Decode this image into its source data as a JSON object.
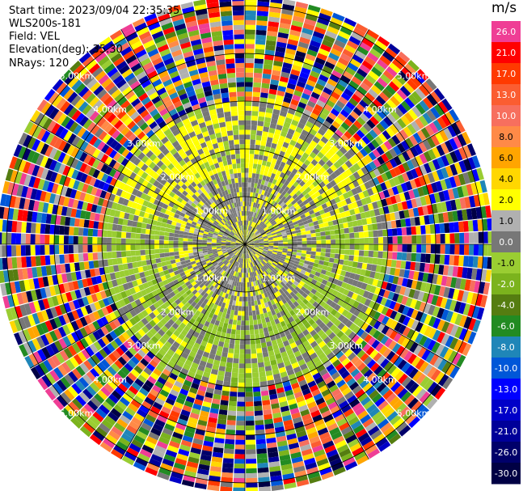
{
  "header": {
    "start_time": "Start time: 2023/09/04 22:35:35",
    "instrument": "WLS200s-181",
    "field": "Field: VEL",
    "elevation": "Elevation(deg): 35.30",
    "nrays": "NRays: 120"
  },
  "colorbar": {
    "unit": "m/s",
    "levels": [
      {
        "label": "26.0",
        "color": "#ef3e95"
      },
      {
        "label": "21.0",
        "color": "#ff0000"
      },
      {
        "label": "17.0",
        "color": "#ff3a00"
      },
      {
        "label": "13.0",
        "color": "#fb5d31"
      },
      {
        "label": "10.0",
        "color": "#f76f5e"
      },
      {
        "label": "8.0",
        "color": "#ff8a47"
      },
      {
        "label": "6.0",
        "color": "#ffa500"
      },
      {
        "label": "4.0",
        "color": "#ffd700"
      },
      {
        "label": "2.0",
        "color": "#ffff00"
      },
      {
        "label": "1.0",
        "color": "#b0b0b0"
      },
      {
        "label": "0.0",
        "color": "#777777"
      },
      {
        "label": "-1.0",
        "color": "#9acd32"
      },
      {
        "label": "-2.0",
        "color": "#7bb31d"
      },
      {
        "label": "-4.0",
        "color": "#557d11"
      },
      {
        "label": "-6.0",
        "color": "#228b22"
      },
      {
        "label": "-8.0",
        "color": "#1f86b8"
      },
      {
        "label": "-10.0",
        "color": "#0057d8"
      },
      {
        "label": "-13.0",
        "color": "#0000ff"
      },
      {
        "label": "-17.0",
        "color": "#0000c8"
      },
      {
        "label": "-21.0",
        "color": "#000099"
      },
      {
        "label": "-26.0",
        "color": "#00006a"
      },
      {
        "label": "-30.0",
        "color": "#000044"
      }
    ]
  },
  "chart_data": {
    "type": "heatmap",
    "projection": "polar PPI",
    "field": "VEL",
    "rays": 120,
    "range_rings_km": [
      1,
      2,
      3,
      4,
      5
    ],
    "range_labels": [
      "1.00km",
      "2.00km",
      "3.00km",
      "4.00km",
      "5.00km"
    ],
    "value_classes": {
      "inner_zone_km": [
        0,
        1.5
      ],
      "inner_dominant": [
        "0.0",
        "2.0"
      ],
      "middle_zone_km": [
        1.5,
        3.0
      ],
      "middle_dominant": [
        "-1.0",
        "0.0",
        "2.0"
      ],
      "outer_zone_km": [
        3.0,
        5.2
      ],
      "outer_dominant": "noise (all classes)"
    }
  }
}
